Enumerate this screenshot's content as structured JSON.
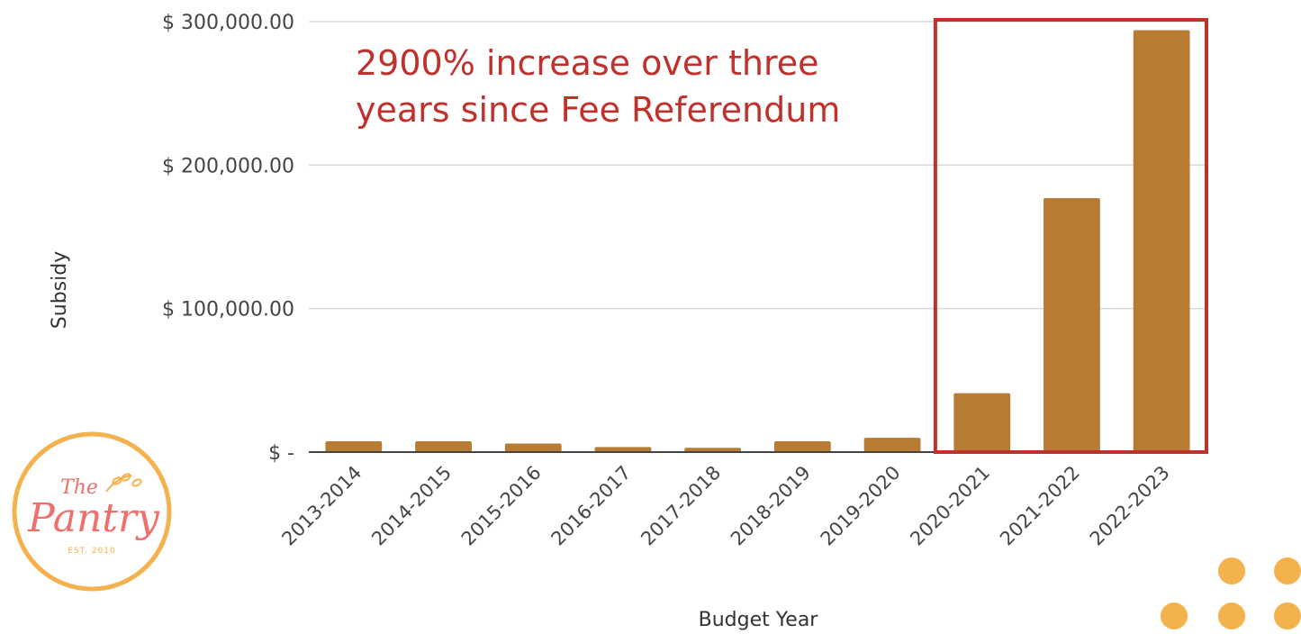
{
  "colors": {
    "bar": "#b87b33",
    "grid": "#d9d9d9",
    "axis": "#444444",
    "highlight_box": "#c0312b",
    "annotation": "#c0312b",
    "logo_ring": "#f4b24e",
    "logo_text": "#ef6f6c",
    "dots": "#f4b24e"
  },
  "chart_data": {
    "type": "bar",
    "xlabel": "Budget Year",
    "ylabel": "Subsidy",
    "ylim": [
      0,
      300000
    ],
    "yticks": [
      0,
      100000,
      200000,
      300000
    ],
    "ytick_labels": [
      "$ -",
      "$ 100,000.00",
      "$ 200,000.00",
      "$ 300,000.00"
    ],
    "grid": true,
    "categories": [
      "2013-2014",
      "2014-2015",
      "2015-2016",
      "2016-2017",
      "2017-2018",
      "2018-2019",
      "2019-2020",
      "2020-2021",
      "2021-2022",
      "2022-2023"
    ],
    "values": [
      7500,
      7500,
      6000,
      3500,
      3000,
      7500,
      10000,
      41000,
      177000,
      294000
    ],
    "annotation": {
      "text_line1": "2900% increase over three",
      "text_line2": "years since Fee Referendum",
      "highlighted_categories": [
        "2020-2021",
        "2021-2022",
        "2022-2023"
      ]
    }
  },
  "logo": {
    "line1": "The",
    "line2": "Pantry",
    "est": "EST. 2010"
  },
  "decor": {
    "icon": "dot-grid-icon"
  }
}
